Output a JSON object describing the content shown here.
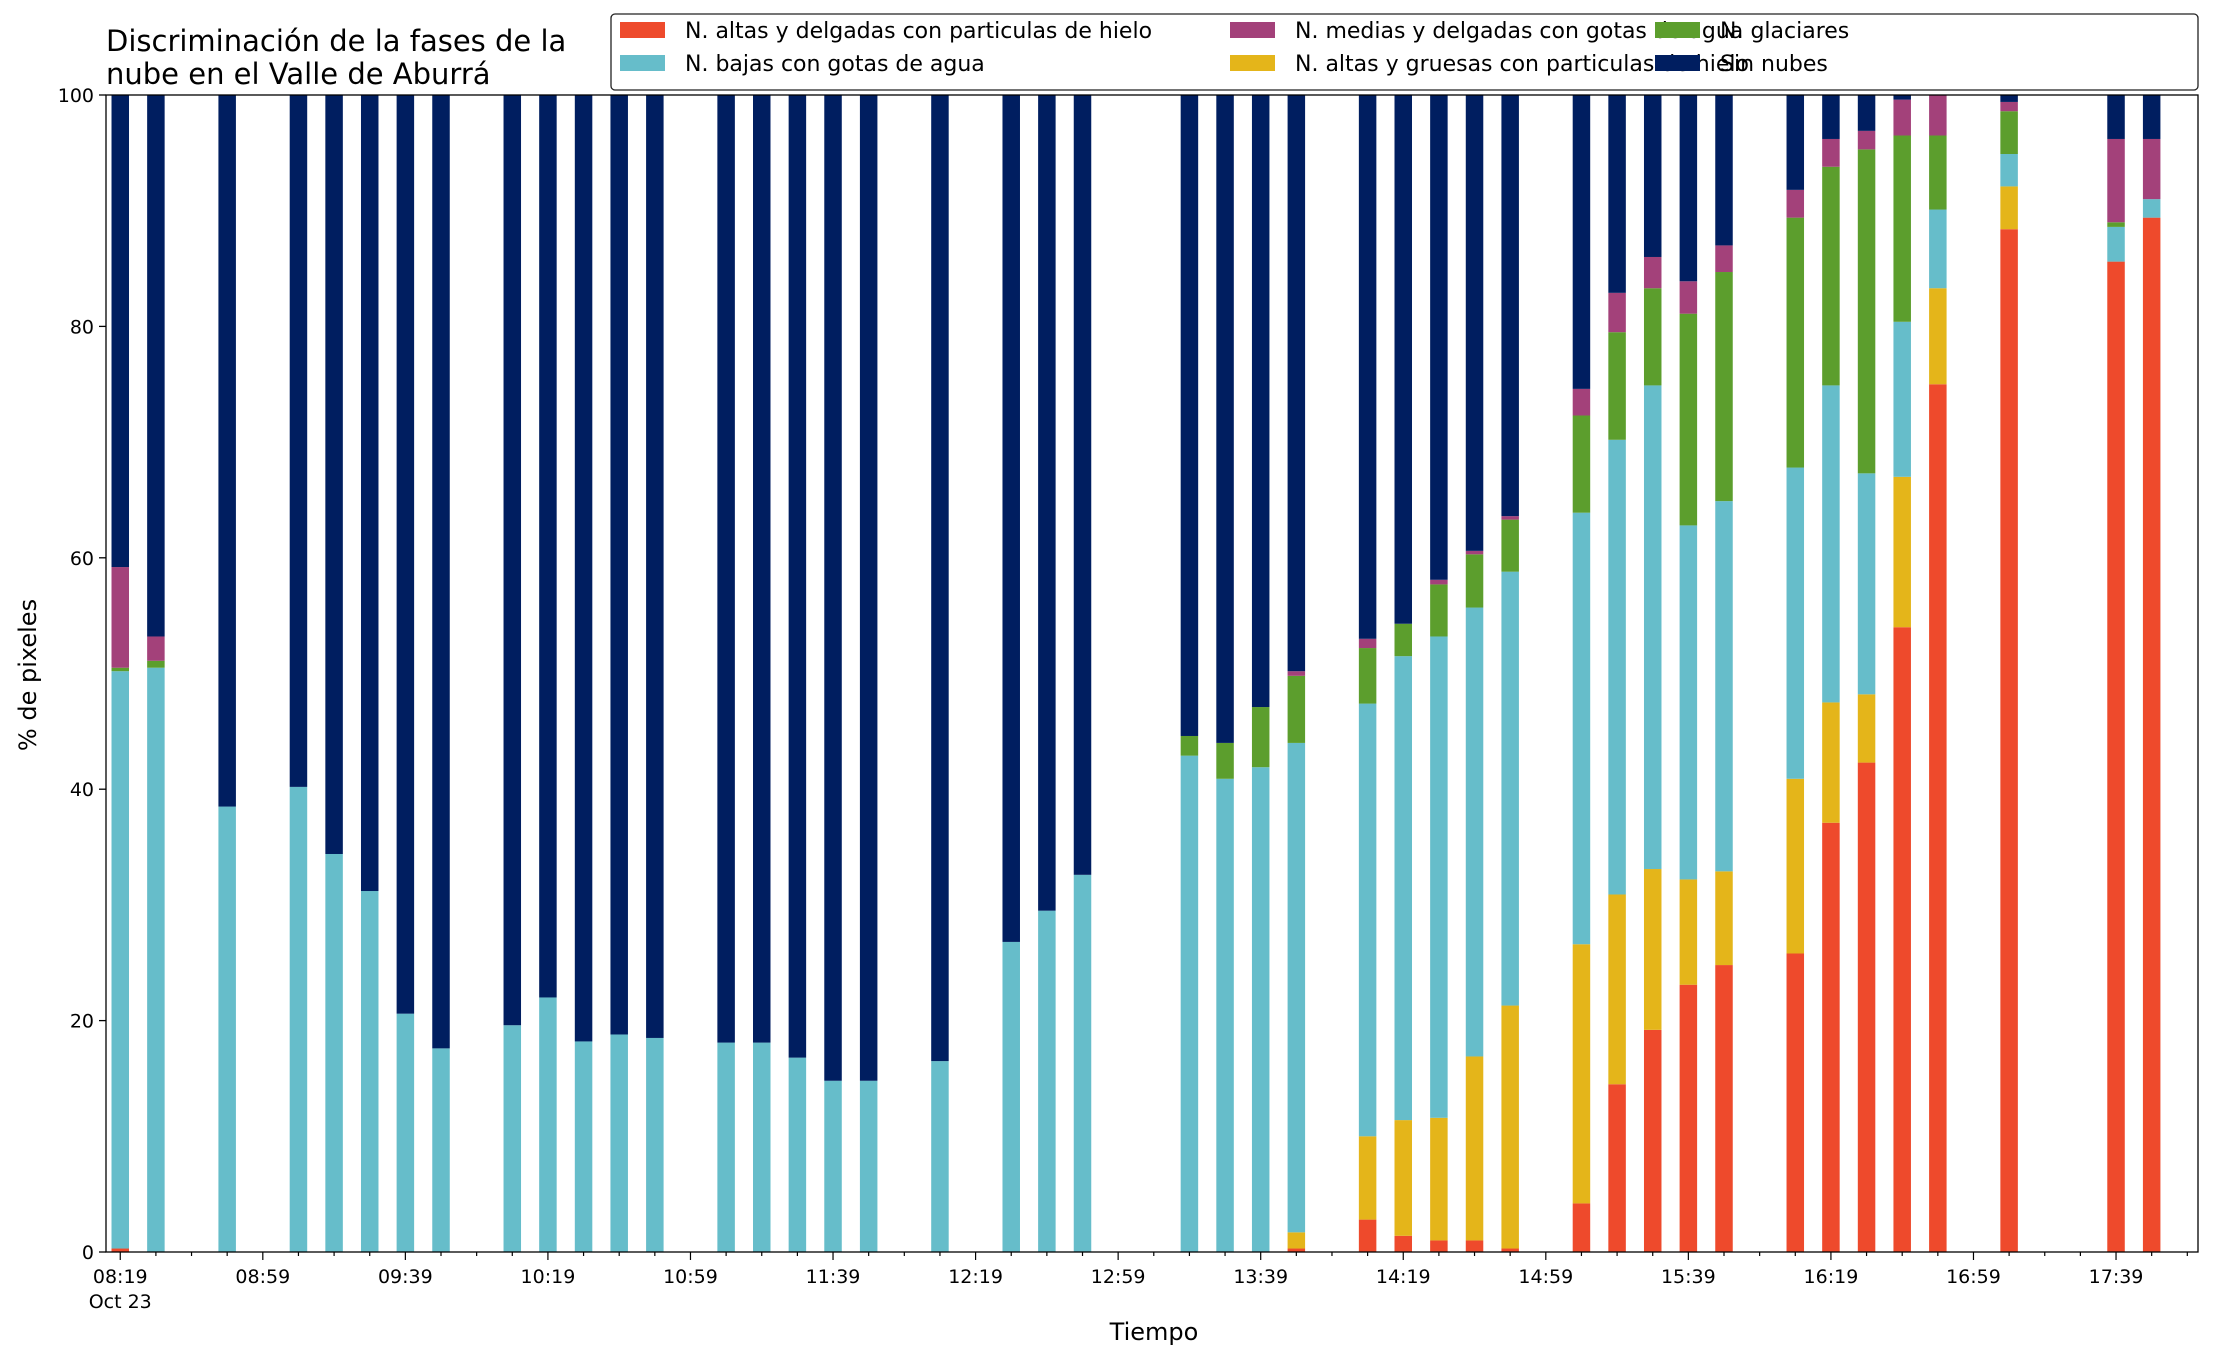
{
  "chart_data": {
    "type": "bar",
    "stacked": true,
    "title": "Discriminación de la fases de la nube en el Valle de Aburrá",
    "title_lines": [
      "Discriminación de la fases de la",
      "nube en el Valle de Aburrá"
    ],
    "xlabel": "Tiempo",
    "ylabel": "% de pixeles",
    "ylim": [
      0,
      100
    ],
    "yticks": [
      "0",
      "20",
      "40",
      "60",
      "80",
      "100"
    ],
    "xlim_minutes": [
      495,
      1082
    ],
    "xtick_labels": [
      {
        "minute": 499,
        "label": "08:19",
        "sublabel": "Oct 23"
      },
      {
        "minute": 539,
        "label": "08:59"
      },
      {
        "minute": 579,
        "label": "09:39"
      },
      {
        "minute": 619,
        "label": "10:19"
      },
      {
        "minute": 659,
        "label": "10:59"
      },
      {
        "minute": 699,
        "label": "11:39"
      },
      {
        "minute": 739,
        "label": "12:19"
      },
      {
        "minute": 779,
        "label": "12:59"
      },
      {
        "minute": 819,
        "label": "13:39"
      },
      {
        "minute": 859,
        "label": "14:19"
      },
      {
        "minute": 899,
        "label": "14:59"
      },
      {
        "minute": 939,
        "label": "15:39"
      },
      {
        "minute": 979,
        "label": "16:19"
      },
      {
        "minute": 1019,
        "label": "16:59"
      },
      {
        "minute": 1059,
        "label": "17:39"
      }
    ],
    "legend_placement": "top-right",
    "grid": false,
    "series": [
      {
        "name": "N. altas y delgadas con particulas de hielo",
        "color": "#ee4a2c"
      },
      {
        "name": "N. altas y gruesas con particulas de hielo",
        "color": "#e4b51a"
      },
      {
        "name": "N. bajas con gotas de agua",
        "color": "#66bdca"
      },
      {
        "name": "N. glaciares",
        "color": "#5c9e2d"
      },
      {
        "name": "N. medias y delgadas con gotas de agua",
        "color": "#a3417a"
      },
      {
        "name": "Sin nubes",
        "color": "#001e60"
      }
    ],
    "legend_order": [
      0,
      2,
      4,
      1,
      3,
      5
    ],
    "x": [
      "08:19",
      "08:29",
      "08:49",
      "09:09",
      "09:19",
      "09:29",
      "09:39",
      "09:49",
      "10:09",
      "10:19",
      "10:29",
      "10:39",
      "10:49",
      "11:09",
      "11:19",
      "11:29",
      "11:39",
      "11:49",
      "12:09",
      "12:29",
      "12:39",
      "12:49",
      "13:19",
      "13:29",
      "13:39",
      "13:49",
      "14:09",
      "14:19",
      "14:29",
      "14:39",
      "14:49",
      "15:09",
      "15:19",
      "15:29",
      "15:39",
      "15:49",
      "16:09",
      "16:19",
      "16:29",
      "16:39",
      "16:49",
      "17:09",
      "17:39",
      "17:49"
    ],
    "values": [
      [
        0.3,
        0,
        49.9,
        0.3,
        8.7,
        40.8
      ],
      [
        0,
        0,
        50.5,
        0.6,
        2.1,
        46.8
      ],
      [
        0,
        0,
        38.5,
        0,
        0,
        61.5
      ],
      [
        0,
        0,
        40.2,
        0,
        0,
        59.8
      ],
      [
        0,
        0,
        34.4,
        0,
        0,
        65.6
      ],
      [
        0,
        0,
        31.2,
        0,
        0,
        68.8
      ],
      [
        0,
        0,
        20.6,
        0,
        0,
        79.4
      ],
      [
        0,
        0,
        17.6,
        0,
        0,
        82.4
      ],
      [
        0,
        0,
        19.6,
        0,
        0,
        80.4
      ],
      [
        0,
        0,
        22.0,
        0,
        0,
        78.0
      ],
      [
        0,
        0,
        18.2,
        0,
        0,
        81.8
      ],
      [
        0,
        0,
        18.8,
        0,
        0,
        81.2
      ],
      [
        0,
        0,
        18.5,
        0,
        0,
        81.5
      ],
      [
        0,
        0,
        18.1,
        0,
        0,
        81.9
      ],
      [
        0,
        0,
        18.1,
        0,
        0,
        81.9
      ],
      [
        0,
        0,
        16.8,
        0,
        0,
        83.2
      ],
      [
        0,
        0,
        14.8,
        0,
        0,
        85.2
      ],
      [
        0,
        0,
        14.8,
        0,
        0,
        85.2
      ],
      [
        0,
        0,
        16.5,
        0,
        0,
        83.5
      ],
      [
        0,
        0,
        26.8,
        0,
        0,
        73.2
      ],
      [
        0,
        0,
        29.5,
        0,
        0,
        70.5
      ],
      [
        0,
        0,
        32.6,
        0,
        0,
        67.4
      ],
      [
        0,
        0,
        42.9,
        1.7,
        0,
        55.4
      ],
      [
        0,
        0,
        40.9,
        3.1,
        0,
        56.0
      ],
      [
        0,
        0,
        41.9,
        5.2,
        0,
        52.9
      ],
      [
        0.3,
        1.4,
        42.3,
        5.8,
        0.4,
        49.8
      ],
      [
        2.8,
        7.2,
        37.4,
        4.8,
        0.8,
        47.0
      ],
      [
        1.4,
        10.0,
        40.1,
        2.8,
        0,
        45.7
      ],
      [
        1.0,
        10.6,
        41.6,
        4.5,
        0.4,
        41.9
      ],
      [
        1.0,
        15.9,
        38.8,
        4.6,
        0.3,
        39.4
      ],
      [
        0.3,
        21.0,
        37.5,
        4.5,
        0.3,
        36.4
      ],
      [
        4.2,
        22.4,
        37.3,
        8.4,
        2.3,
        25.4
      ],
      [
        14.5,
        16.4,
        39.3,
        9.3,
        3.4,
        17.1
      ],
      [
        19.2,
        13.9,
        41.8,
        8.4,
        2.7,
        14.0
      ],
      [
        23.1,
        9.1,
        30.6,
        18.3,
        2.8,
        16.1
      ],
      [
        24.8,
        8.1,
        32.0,
        19.8,
        2.3,
        13.0
      ],
      [
        25.8,
        15.1,
        26.9,
        21.6,
        2.4,
        8.2
      ],
      [
        37.1,
        10.4,
        27.4,
        18.9,
        2.4,
        3.8
      ],
      [
        42.3,
        5.9,
        19.1,
        28.0,
        1.6,
        3.1
      ],
      [
        54.0,
        13.0,
        13.4,
        16.1,
        3.1,
        0.4
      ],
      [
        75.0,
        8.3,
        6.8,
        6.4,
        3.5,
        0
      ],
      [
        88.4,
        3.7,
        2.8,
        3.7,
        0.8,
        0.6
      ],
      [
        85.6,
        0,
        3.0,
        0.4,
        7.2,
        3.8
      ],
      [
        89.4,
        0,
        1.6,
        0,
        5.2,
        3.8
      ]
    ]
  }
}
